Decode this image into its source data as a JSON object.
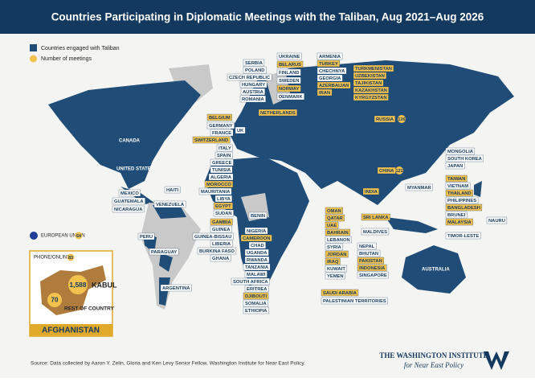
{
  "title": "Countries Participating in Diplomatic Meetings with the Taliban, Aug 2021–Aug 2026",
  "legend": {
    "engaged": "Countries engaged with Taliban",
    "meetings": "Number of meetings"
  },
  "countries": [
    "SERBIA",
    "POLAND",
    "CZECH REPUBLIC",
    "HUNGARY",
    "AUSTRIA",
    "ROMANIA",
    "UKRAINE",
    "BELARUS",
    "FINLAND",
    "SWEDEN",
    "NORWAY",
    "DENMARK",
    "ARMENIA",
    "TURKEY",
    "CHECHNYA",
    "GEORGIA",
    "AZERBAIJAN",
    "IRAN",
    "TURKMENISTAN",
    "UZBEKISTAN",
    "TAJIKISTAN",
    "KAZAKHSTAN",
    "KYRGYZSTAN",
    "BELGIUM",
    "GERMANY",
    "FRANCE",
    "SWITZERLAND",
    "UK",
    "NETHERLANDS",
    "ITALY",
    "SPAIN",
    "GREECE",
    "TUNISIA",
    "ALGERIA",
    "MOROCCO",
    "MAURITANIA",
    "LIBYA",
    "EGYPT",
    "SUDAN",
    "GAMBIA",
    "GUINEA",
    "GUINEA-BISSAU",
    "LIBERIA",
    "BURKINA FASO",
    "GHANA",
    "BENIN",
    "NIGERIA",
    "CAMEROON",
    "CHAD",
    "UGANDA",
    "RWANDA",
    "TANZANIA",
    "MALAWI",
    "SOUTH AFRICA",
    "ERITREA",
    "DJIBOUTI",
    "SOMALIA",
    "ETHIOPIA",
    "OMAN",
    "QATAR",
    "UAE",
    "BAHRAIN",
    "LEBANON",
    "SYRIA",
    "JORDAN",
    "IRAQ",
    "KUWAIT",
    "YEMEN",
    "SAUDI ARABIA",
    "PALESTINIAN TERRITORIES",
    "INDIA",
    "SRI LANKA",
    "MALDIVES",
    "NEPAL",
    "BHUTAN",
    "PAKISTAN",
    "INDONESIA",
    "SINGAPORE",
    "MONGOLIA",
    "SOUTH KOREA",
    "JAPAN",
    "MYANMAR",
    "TAIWAN",
    "VIETNAM",
    "THAILAND",
    "PHILIPPINES",
    "BANGLADESH",
    "BRUNEI",
    "MALAYSIA",
    "NAURU",
    "TIMOR-LESTE",
    "MEXICO",
    "GUATEMALA",
    "NICARAGUA",
    "HAITI",
    "VENEZUELA",
    "PERU",
    "PARAGUAY",
    "ARGENTINA"
  ],
  "regions": [
    "CANADA",
    "UNITED STATES",
    "AUSTRALIA"
  ],
  "callouts": [
    {
      "label": "RUSSIA",
      "meetings": 126
    },
    {
      "label": "CHINA",
      "meetings": 121
    },
    {
      "label": "EUROPEAN UNION",
      "meetings": 64
    }
  ],
  "afghanistan": {
    "title": "AFGHANISTAN",
    "phone_online": {
      "label": "PHONE/ONLINE",
      "meetings": 83
    },
    "kabul": {
      "label": "KABUL",
      "meetings": {
        "value": 1588,
        "label": "1,588"
      }
    },
    "rest": {
      "label": "REST OF COUNTRY",
      "meetings": 70
    }
  },
  "source": "Source: Data collected by Aaron Y. Zelin, Gloria and Ken Levy Senior Fellow, Washington Institute for Near East Policy.",
  "logo": {
    "name": "THE WASHINGTON INSTITUTE",
    "tagline": "for Near East Policy"
  }
}
